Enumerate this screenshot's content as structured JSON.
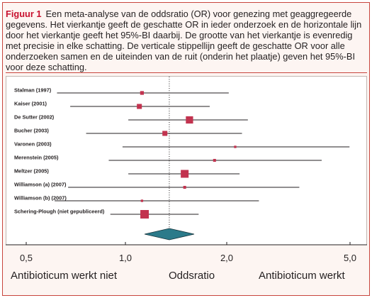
{
  "figure": {
    "label": "Figuur 1",
    "caption_lines": [
      "Een meta-analyse van de oddsratio (OR) voor genezing met geaggregeerde",
      "gegevens. Het vierkantje geeft de geschatte OR in ieder onderzoek en de horizontale lijn",
      "door het vierkantje geeft het 95%-BI daarbij. De grootte van het vierkantje is evenredig",
      "met precisie in elke schatting. De verticale stippellijn geeft de geschatte OR voor alle",
      "onderzoeken samen en de uiteinden van de ruit (onderin het plaatje) geven het 95%-BI",
      "voor deze schatting."
    ]
  },
  "colors": {
    "accent": "#c8102e",
    "frame_border": "#c8453d",
    "estimate_square": "#c2334f",
    "pooled_diamond": "#2b7a8a",
    "diamond_outline": "#16343c",
    "line": "#231f20"
  },
  "chart_data": {
    "type": "scatter",
    "x_scale": "log",
    "xlim": [
      0.43,
      5.7
    ],
    "x_ticks": [
      0.5,
      1,
      2,
      5
    ],
    "x_tick_labels": [
      "0,5",
      "1,0",
      "2,0",
      "5,0"
    ],
    "xlabel": "Oddsratio",
    "x_direction_labels": {
      "left": "Antibioticum werkt niet",
      "right": "Antibioticum werkt"
    },
    "grid": false,
    "legend": "none",
    "studies": [
      {
        "label": "Stalman (1997)",
        "or": 1.12,
        "ci": [
          0.62,
          2.03
        ],
        "weight": 5
      },
      {
        "label": "Kaiser (2001)",
        "or": 1.1,
        "ci": [
          0.68,
          1.78
        ],
        "weight": 9
      },
      {
        "label": "De Sutter (2002)",
        "or": 1.55,
        "ci": [
          1.02,
          2.34
        ],
        "weight": 19
      },
      {
        "label": "Bucher (2003)",
        "or": 1.31,
        "ci": [
          0.76,
          2.24
        ],
        "weight": 9
      },
      {
        "label": "Varonen (2003)",
        "or": 2.13,
        "ci": [
          0.98,
          4.98
        ],
        "weight": 2
      },
      {
        "label": "Merenstein (2005)",
        "or": 1.84,
        "ci": [
          0.89,
          4.05
        ],
        "weight": 3
      },
      {
        "label": "Meltzer (2005)",
        "or": 1.5,
        "ci": [
          1.02,
          2.2
        ],
        "weight": 22
      },
      {
        "label": "Williamson (a) (2007)",
        "or": 1.5,
        "ci": [
          0.67,
          3.43
        ],
        "weight": 3
      },
      {
        "label": "Williamson (b) (2007)",
        "or": 1.12,
        "ci": [
          0.61,
          2.54
        ],
        "weight": 2
      },
      {
        "label": "Schering-Plough (niet gepubliceerd)",
        "or": 1.14,
        "ci": [
          0.9,
          1.65
        ],
        "weight": 26
      }
    ],
    "pooled": {
      "or": 1.35,
      "ci": [
        1.14,
        1.6
      ]
    }
  }
}
